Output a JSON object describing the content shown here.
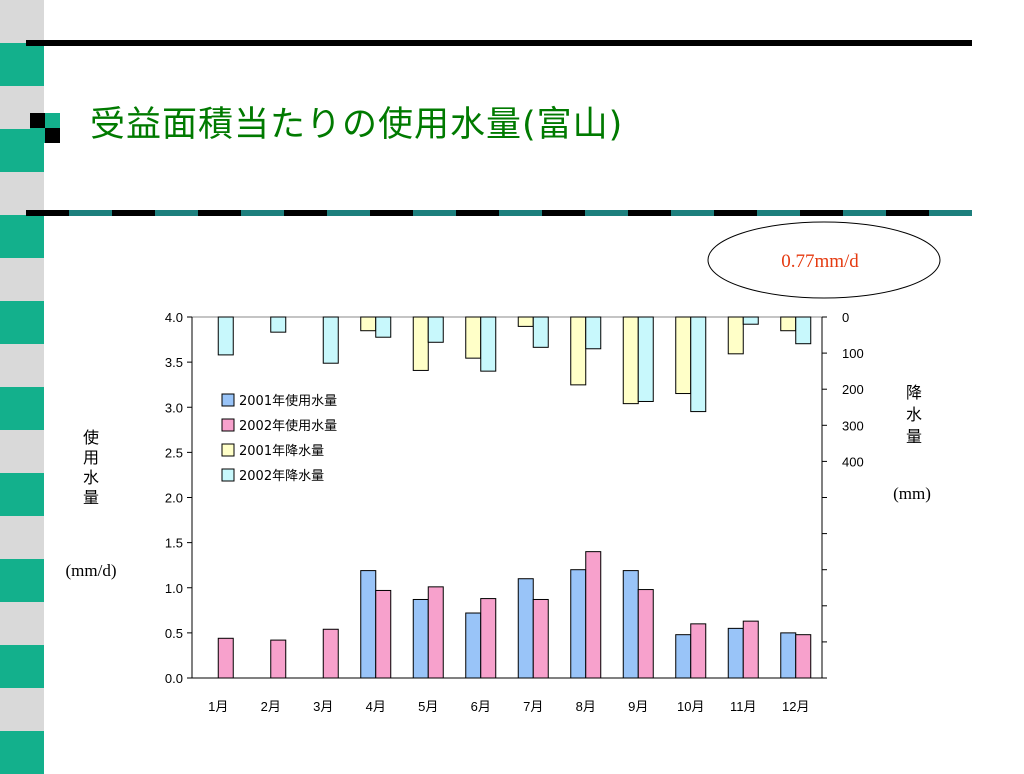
{
  "slide": {
    "title": "受益面積当たりの使用水量(富山)"
  },
  "callout": {
    "text": "0.77mm/d"
  },
  "colors": {
    "accent": "#13b08c",
    "stripe_light": "#d9d9d9",
    "title": "#007a00",
    "callout_text": "#e53a10"
  },
  "chart_data": {
    "type": "bar",
    "categories": [
      "1月",
      "2月",
      "3月",
      "4月",
      "5月",
      "6月",
      "7月",
      "8月",
      "9月",
      "10月",
      "11月",
      "12月"
    ],
    "left_axis": {
      "label_chars": [
        "使",
        "用",
        "水",
        "量"
      ],
      "unit": "(mm/d)",
      "ylim": [
        0,
        4.0
      ],
      "ticks": [
        "0.0",
        "0.5",
        "1.0",
        "1.5",
        "2.0",
        "2.5",
        "3.0",
        "3.5",
        "4.0"
      ]
    },
    "right_axis": {
      "label_chars": [
        "降",
        "水",
        "量"
      ],
      "unit": "(mm)",
      "inverted": true,
      "ylim": [
        0,
        1000
      ],
      "ticks": [
        "0",
        "100",
        "200",
        "300",
        "400"
      ]
    },
    "series": [
      {
        "name": "2001年使用水量",
        "axis": "left",
        "color": "#99c4f8",
        "values": [
          null,
          null,
          null,
          1.19,
          0.87,
          0.72,
          1.1,
          1.2,
          1.19,
          0.48,
          0.55,
          0.5
        ]
      },
      {
        "name": "2002年使用水量",
        "axis": "left",
        "color": "#f7a1cc",
        "values": [
          0.44,
          0.42,
          0.54,
          0.97,
          1.01,
          0.88,
          0.87,
          1.4,
          0.98,
          0.6,
          0.63,
          0.48
        ]
      },
      {
        "name": "2001年降水量",
        "axis": "right",
        "color": "#ffffc8",
        "values": [
          null,
          null,
          null,
          38,
          148,
          114,
          26,
          188,
          240,
          212,
          102,
          38
        ]
      },
      {
        "name": "2002年降水量",
        "axis": "right",
        "color": "#c8f8fc",
        "values": [
          105,
          42,
          128,
          56,
          70,
          150,
          84,
          88,
          234,
          262,
          20,
          74
        ]
      }
    ],
    "legend_position": "upper-left inside plot",
    "grid": false
  }
}
